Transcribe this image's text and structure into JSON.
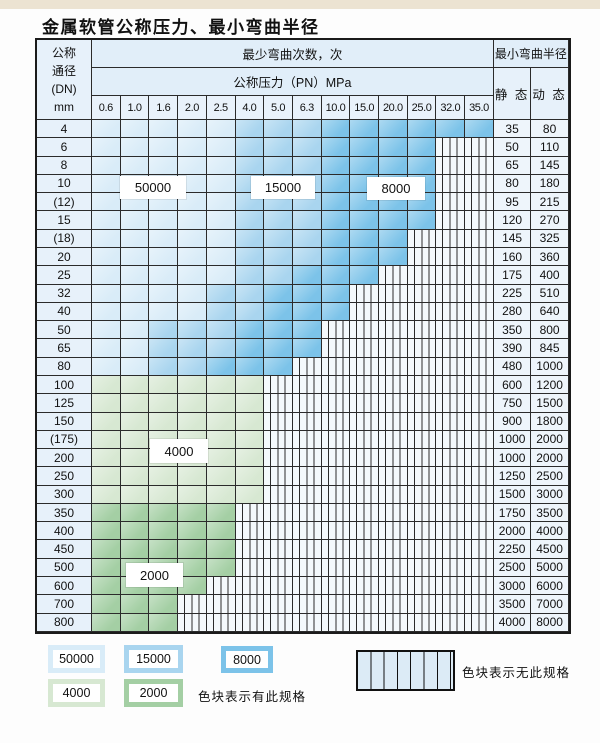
{
  "title": "金属软管公称压力、最小弯曲半径",
  "table": {
    "corner_lines": [
      "公称",
      "通径",
      "(DN)",
      "mm"
    ],
    "bend_times_header": "最少弯曲次数，次",
    "pressure_header": "公称压力（PN）MPa",
    "radius_header": "最小弯曲半径",
    "static_header": "静 态",
    "dynamic_header": "动 态",
    "pressures": [
      "0.6",
      "1.0",
      "1.6",
      "2.0",
      "2.5",
      "4.0",
      "5.0",
      "6.3",
      "10.0",
      "15.0",
      "20.0",
      "25.0",
      "32.0",
      "35.0"
    ],
    "rows": [
      {
        "dn": "4",
        "static": "35",
        "dynamic": "80",
        "spans": [
          [
            "50000",
            1,
            5
          ],
          [
            "15000",
            6,
            8
          ],
          [
            "8000",
            9,
            14
          ]
        ]
      },
      {
        "dn": "6",
        "static": "50",
        "dynamic": "110",
        "spans": [
          [
            "50000",
            1,
            5
          ],
          [
            "15000",
            6,
            8
          ],
          [
            "8000",
            9,
            12
          ]
        ]
      },
      {
        "dn": "8",
        "static": "65",
        "dynamic": "145",
        "spans": [
          [
            "50000",
            1,
            5
          ],
          [
            "15000",
            6,
            8
          ],
          [
            "8000",
            9,
            12
          ]
        ]
      },
      {
        "dn": "10",
        "static": "80",
        "dynamic": "180",
        "spans": [
          [
            "50000",
            1,
            5
          ],
          [
            "15000",
            6,
            8
          ],
          [
            "8000",
            9,
            12
          ]
        ]
      },
      {
        "dn": "(12)",
        "static": "95",
        "dynamic": "215",
        "spans": [
          [
            "50000",
            1,
            5
          ],
          [
            "15000",
            6,
            8
          ],
          [
            "8000",
            9,
            12
          ]
        ]
      },
      {
        "dn": "15",
        "static": "120",
        "dynamic": "270",
        "spans": [
          [
            "50000",
            1,
            5
          ],
          [
            "15000",
            6,
            8
          ],
          [
            "8000",
            9,
            12
          ]
        ]
      },
      {
        "dn": "(18)",
        "static": "145",
        "dynamic": "325",
        "spans": [
          [
            "50000",
            1,
            5
          ],
          [
            "15000",
            6,
            8
          ],
          [
            "8000",
            9,
            11
          ]
        ]
      },
      {
        "dn": "20",
        "static": "160",
        "dynamic": "360",
        "spans": [
          [
            "50000",
            1,
            5
          ],
          [
            "15000",
            6,
            8
          ],
          [
            "8000",
            9,
            11
          ]
        ]
      },
      {
        "dn": "25",
        "static": "175",
        "dynamic": "400",
        "spans": [
          [
            "50000",
            1,
            5
          ],
          [
            "15000",
            6,
            7
          ],
          [
            "8000",
            8,
            10
          ]
        ]
      },
      {
        "dn": "32",
        "static": "225",
        "dynamic": "510",
        "spans": [
          [
            "50000",
            1,
            4
          ],
          [
            "15000",
            5,
            6
          ],
          [
            "8000",
            7,
            9
          ]
        ]
      },
      {
        "dn": "40",
        "static": "280",
        "dynamic": "640",
        "spans": [
          [
            "50000",
            1,
            4
          ],
          [
            "15000",
            5,
            6
          ],
          [
            "8000",
            7,
            9
          ]
        ]
      },
      {
        "dn": "50",
        "static": "350",
        "dynamic": "800",
        "spans": [
          [
            "50000",
            1,
            2
          ],
          [
            "15000",
            3,
            5
          ],
          [
            "8000",
            6,
            8
          ]
        ]
      },
      {
        "dn": "65",
        "static": "390",
        "dynamic": "845",
        "spans": [
          [
            "50000",
            1,
            2
          ],
          [
            "15000",
            3,
            5
          ],
          [
            "8000",
            6,
            8
          ]
        ]
      },
      {
        "dn": "80",
        "static": "480",
        "dynamic": "1000",
        "spans": [
          [
            "50000",
            1,
            2
          ],
          [
            "15000",
            3,
            4
          ],
          [
            "8000",
            5,
            7
          ]
        ]
      },
      {
        "dn": "100",
        "static": "600",
        "dynamic": "1200",
        "spans": [
          [
            "4000",
            1,
            6
          ]
        ]
      },
      {
        "dn": "125",
        "static": "750",
        "dynamic": "1500",
        "spans": [
          [
            "4000",
            1,
            6
          ]
        ]
      },
      {
        "dn": "150",
        "static": "900",
        "dynamic": "1800",
        "spans": [
          [
            "4000",
            1,
            6
          ]
        ]
      },
      {
        "dn": "(175)",
        "static": "1000",
        "dynamic": "2000",
        "spans": [
          [
            "4000",
            1,
            6
          ]
        ]
      },
      {
        "dn": "200",
        "static": "1000",
        "dynamic": "2000",
        "spans": [
          [
            "4000",
            1,
            6
          ]
        ]
      },
      {
        "dn": "250",
        "static": "1250",
        "dynamic": "2500",
        "spans": [
          [
            "4000",
            1,
            6
          ]
        ]
      },
      {
        "dn": "300",
        "static": "1500",
        "dynamic": "3000",
        "spans": [
          [
            "4000",
            1,
            6
          ]
        ]
      },
      {
        "dn": "350",
        "static": "1750",
        "dynamic": "3500",
        "spans": [
          [
            "2000",
            1,
            5
          ]
        ]
      },
      {
        "dn": "400",
        "static": "2000",
        "dynamic": "4000",
        "spans": [
          [
            "2000",
            1,
            5
          ]
        ]
      },
      {
        "dn": "450",
        "static": "2250",
        "dynamic": "4500",
        "spans": [
          [
            "2000",
            1,
            5
          ]
        ]
      },
      {
        "dn": "500",
        "static": "2500",
        "dynamic": "5000",
        "spans": [
          [
            "2000",
            1,
            5
          ]
        ]
      },
      {
        "dn": "600",
        "static": "3000",
        "dynamic": "6000",
        "spans": [
          [
            "2000",
            1,
            4
          ]
        ]
      },
      {
        "dn": "700",
        "static": "3500",
        "dynamic": "7000",
        "spans": [
          [
            "2000",
            1,
            3
          ]
        ]
      },
      {
        "dn": "800",
        "static": "4000",
        "dynamic": "8000",
        "spans": [
          [
            "2000",
            1,
            3
          ]
        ]
      }
    ]
  },
  "grade_colors": {
    "50000": "#d9ecf8",
    "15000": "#a9d5ef",
    "8000": "#7cc3e9",
    "4000": "#d7e8d2",
    "2000": "#a4cfa4"
  },
  "zone_labels": [
    "50000",
    "15000",
    "8000",
    "4000",
    "2000"
  ],
  "legend": {
    "items": [
      {
        "label": "50000",
        "color": "#d9ecf8"
      },
      {
        "label": "15000",
        "color": "#a9d5ef"
      },
      {
        "label": "8000",
        "color": "#7cc3e9"
      },
      {
        "label": "4000",
        "color": "#d7e8d2"
      },
      {
        "label": "2000",
        "color": "#a4cfa4"
      }
    ],
    "has_spec_text": "色块表示有此规格",
    "no_spec_text": "色块表示无此规格"
  }
}
